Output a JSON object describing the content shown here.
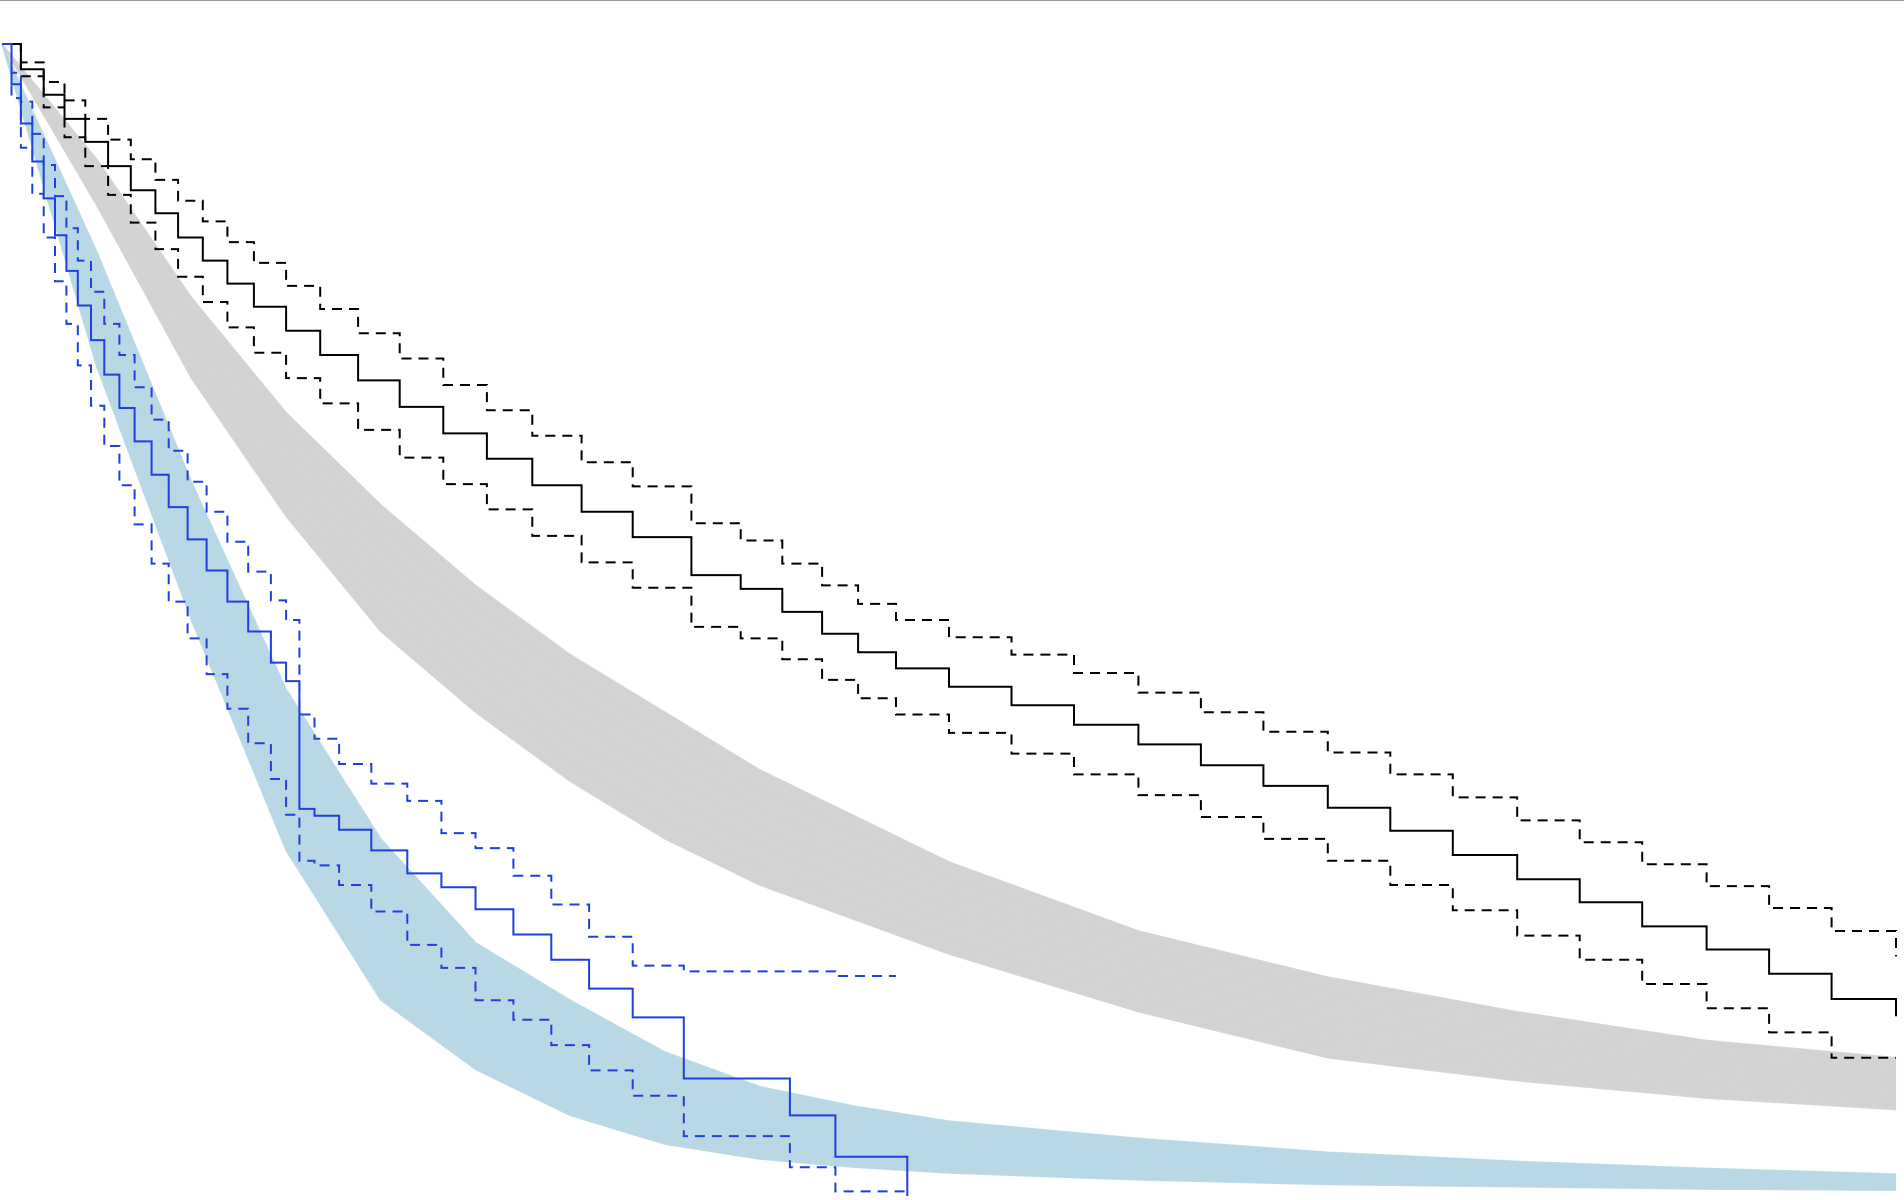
{
  "chart_data": {
    "type": "line",
    "title": "",
    "xlabel": "",
    "ylabel": "",
    "xlim": [
      0,
      1000
    ],
    "ylim": [
      0,
      1
    ],
    "grid": false,
    "legend": "none",
    "series": [
      {
        "color": "#000000",
        "style": "step",
        "role": "estimate",
        "x": [
          0,
          10,
          22,
          33,
          44,
          56,
          68,
          81,
          93,
          106,
          119,
          133,
          150,
          168,
          188,
          210,
          233,
          256,
          280,
          306,
          333,
          364,
          390,
          412,
          433,
          452,
          472,
          500,
          533,
          566,
          600,
          633,
          666,
          700,
          733,
          766,
          800,
          833,
          866,
          900,
          933,
          966,
          1000
        ],
        "y": [
          1.0,
          0.978,
          0.956,
          0.935,
          0.915,
          0.894,
          0.873,
          0.853,
          0.832,
          0.812,
          0.792,
          0.772,
          0.751,
          0.73,
          0.708,
          0.685,
          0.662,
          0.64,
          0.617,
          0.594,
          0.572,
          0.539,
          0.527,
          0.507,
          0.488,
          0.472,
          0.458,
          0.442,
          0.426,
          0.409,
          0.392,
          0.374,
          0.356,
          0.337,
          0.317,
          0.296,
          0.275,
          0.255,
          0.234,
          0.214,
          0.193,
          0.171,
          0.156
        ]
      },
      {
        "color": "#000000",
        "style": "dashed-step",
        "role": "upper-bound",
        "x": [
          0,
          10,
          22,
          33,
          44,
          56,
          68,
          81,
          93,
          106,
          119,
          133,
          150,
          168,
          188,
          210,
          233,
          256,
          280,
          306,
          333,
          364,
          390,
          412,
          433,
          452,
          472,
          500,
          533,
          566,
          600,
          633,
          666,
          700,
          733,
          766,
          800,
          833,
          866,
          900,
          933,
          966,
          1000
        ],
        "y": [
          1.0,
          0.984,
          0.967,
          0.951,
          0.935,
          0.917,
          0.9,
          0.882,
          0.864,
          0.846,
          0.828,
          0.81,
          0.79,
          0.77,
          0.749,
          0.727,
          0.704,
          0.682,
          0.66,
          0.637,
          0.616,
          0.584,
          0.569,
          0.549,
          0.53,
          0.514,
          0.5,
          0.485,
          0.47,
          0.454,
          0.437,
          0.42,
          0.403,
          0.385,
          0.366,
          0.346,
          0.326,
          0.307,
          0.288,
          0.269,
          0.25,
          0.23,
          0.208
        ]
      },
      {
        "color": "#000000",
        "style": "dashed-step",
        "role": "lower-bound",
        "x": [
          0,
          10,
          22,
          33,
          44,
          56,
          68,
          81,
          93,
          106,
          119,
          133,
          150,
          168,
          188,
          210,
          233,
          256,
          280,
          306,
          333,
          364,
          390,
          412,
          433,
          452,
          472,
          500,
          533,
          566,
          600,
          633,
          666,
          700,
          733,
          766,
          800,
          833,
          866,
          900,
          933,
          966,
          1000
        ],
        "y": [
          1.0,
          0.972,
          0.945,
          0.919,
          0.894,
          0.869,
          0.845,
          0.822,
          0.798,
          0.776,
          0.754,
          0.732,
          0.71,
          0.688,
          0.665,
          0.641,
          0.618,
          0.596,
          0.573,
          0.55,
          0.528,
          0.494,
          0.484,
          0.466,
          0.448,
          0.432,
          0.418,
          0.402,
          0.384,
          0.366,
          0.348,
          0.329,
          0.31,
          0.291,
          0.27,
          0.248,
          0.226,
          0.205,
          0.184,
          0.163,
          0.142,
          0.12,
          0.12
        ]
      },
      {
        "color": "#1f3fe0",
        "style": "step",
        "role": "estimate",
        "x": [
          0,
          5,
          10,
          16,
          22,
          28,
          34,
          40,
          47,
          54,
          62,
          70,
          79,
          88,
          98,
          108,
          119,
          130,
          142,
          150,
          157,
          165,
          178,
          195,
          214,
          232,
          250,
          270,
          290,
          310,
          333,
          360,
          390,
          416,
          440,
          462,
          478
        ],
        "y": [
          1.0,
          0.965,
          0.931,
          0.898,
          0.866,
          0.834,
          0.803,
          0.773,
          0.743,
          0.713,
          0.684,
          0.655,
          0.626,
          0.598,
          0.57,
          0.543,
          0.516,
          0.49,
          0.463,
          0.447,
          0.336,
          0.33,
          0.318,
          0.3,
          0.28,
          0.268,
          0.249,
          0.227,
          0.205,
          0.18,
          0.155,
          0.102,
          0.102,
          0.07,
          0.034,
          0.034,
          0.0
        ]
      },
      {
        "color": "#1f3fe0",
        "style": "dashed-step",
        "role": "upper-bound",
        "x": [
          0,
          5,
          10,
          16,
          22,
          28,
          34,
          40,
          47,
          54,
          62,
          70,
          79,
          88,
          98,
          108,
          119,
          130,
          142,
          150,
          157,
          165,
          178,
          195,
          214,
          232,
          250,
          270,
          290,
          310,
          333,
          360,
          390,
          416,
          440,
          472
        ],
        "y": [
          1.0,
          0.975,
          0.95,
          0.922,
          0.895,
          0.868,
          0.84,
          0.812,
          0.785,
          0.757,
          0.73,
          0.702,
          0.674,
          0.647,
          0.62,
          0.594,
          0.568,
          0.542,
          0.517,
          0.5,
          0.418,
          0.397,
          0.375,
          0.358,
          0.343,
          0.315,
          0.302,
          0.278,
          0.253,
          0.225,
          0.2,
          0.195,
          0.195,
          0.195,
          0.191,
          0.191
        ]
      },
      {
        "color": "#1f3fe0",
        "style": "dashed-step",
        "role": "lower-bound",
        "x": [
          0,
          5,
          10,
          16,
          22,
          28,
          34,
          40,
          47,
          54,
          62,
          70,
          79,
          88,
          98,
          108,
          119,
          130,
          142,
          150,
          157,
          165,
          178,
          195,
          214,
          232,
          250,
          270,
          290,
          310,
          333,
          360,
          390,
          416,
          440,
          462,
          478
        ],
        "y": [
          1.0,
          0.953,
          0.91,
          0.87,
          0.832,
          0.794,
          0.757,
          0.721,
          0.686,
          0.651,
          0.617,
          0.583,
          0.549,
          0.516,
          0.484,
          0.453,
          0.423,
          0.393,
          0.362,
          0.331,
          0.291,
          0.287,
          0.27,
          0.247,
          0.218,
          0.198,
          0.17,
          0.153,
          0.131,
          0.109,
          0.087,
          0.052,
          0.052,
          0.025,
          0.004,
          0.004,
          0.0
        ]
      }
    ],
    "bands": [
      {
        "color": "#b7d8e4",
        "role": "simulated-curves",
        "x": [
          0,
          50,
          100,
          150,
          200,
          250,
          300,
          350,
          400,
          450,
          500,
          600,
          700,
          800,
          900,
          1000
        ],
        "lower": [
          1.0,
          0.72,
          0.5,
          0.3,
          0.17,
          0.11,
          0.07,
          0.045,
          0.032,
          0.025,
          0.02,
          0.014,
          0.01,
          0.008,
          0.006,
          0.005
        ],
        "upper": [
          1.0,
          0.82,
          0.62,
          0.44,
          0.31,
          0.22,
          0.17,
          0.125,
          0.095,
          0.078,
          0.065,
          0.05,
          0.038,
          0.03,
          0.024,
          0.019
        ]
      },
      {
        "color": "#d3d3d3",
        "role": "simulated-curves",
        "x": [
          0,
          50,
          100,
          150,
          200,
          250,
          300,
          350,
          400,
          450,
          500,
          600,
          700,
          800,
          900,
          1000
        ],
        "lower": [
          1.0,
          0.86,
          0.71,
          0.59,
          0.49,
          0.42,
          0.36,
          0.31,
          0.27,
          0.24,
          0.21,
          0.16,
          0.12,
          0.1,
          0.085,
          0.075
        ],
        "upper": [
          1.0,
          0.9,
          0.78,
          0.68,
          0.6,
          0.53,
          0.47,
          0.42,
          0.37,
          0.33,
          0.29,
          0.23,
          0.19,
          0.16,
          0.135,
          0.12
        ]
      }
    ]
  }
}
